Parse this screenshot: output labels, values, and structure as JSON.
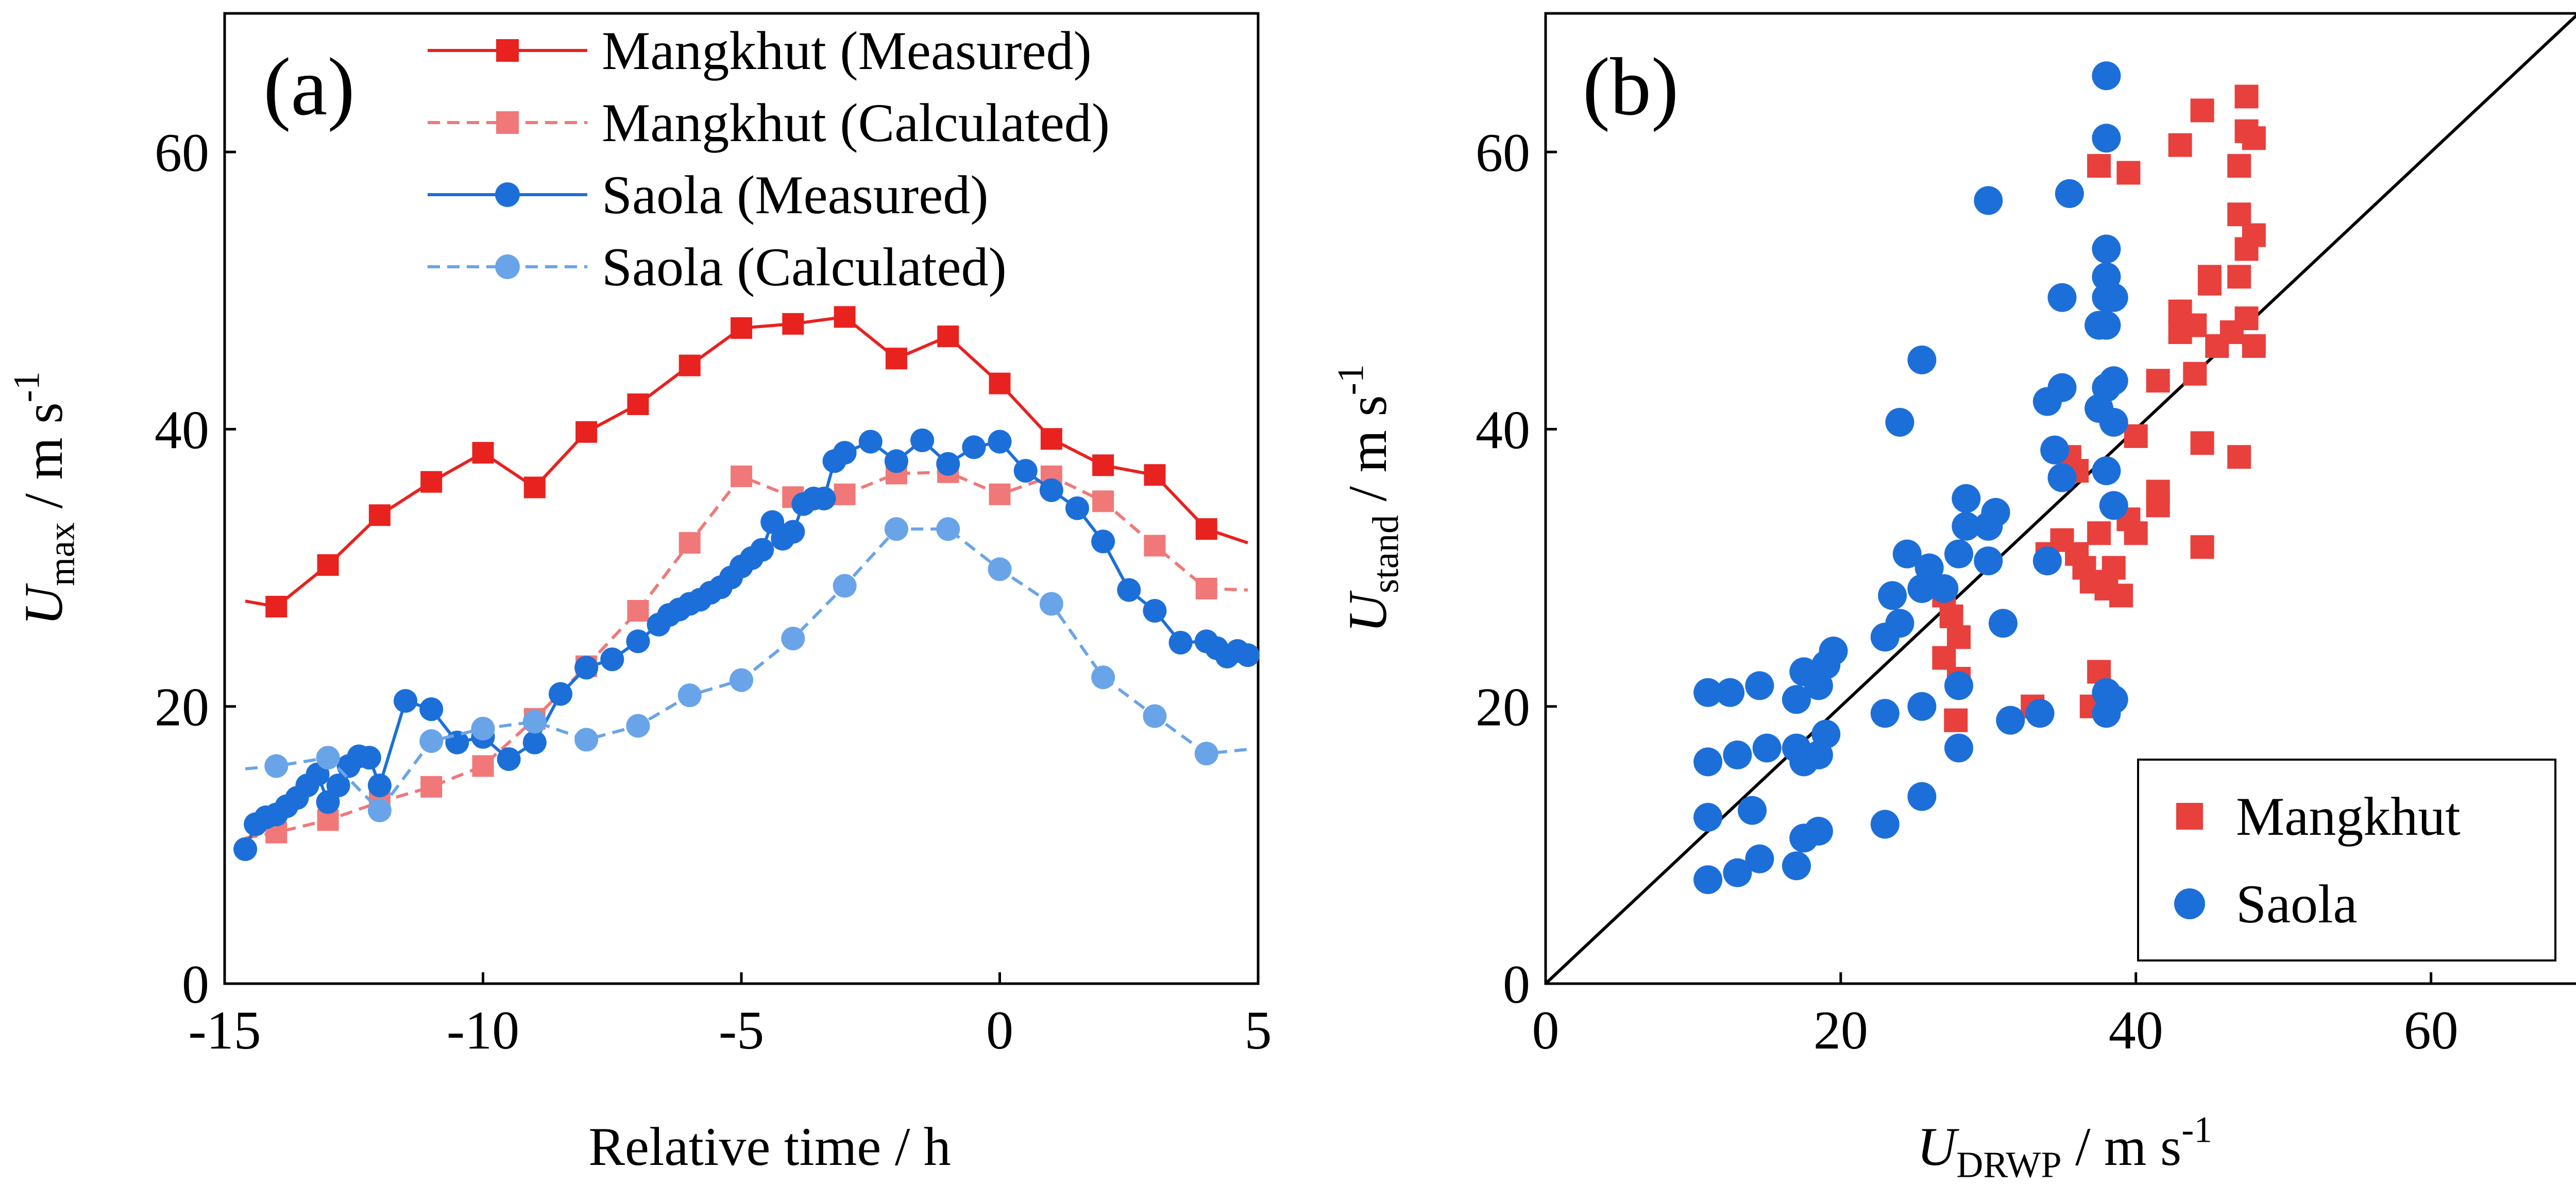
{
  "chart_data": [
    {
      "panel": "(a)",
      "type": "line",
      "xlabel": "Relative time / h",
      "ylabel_main": "U",
      "ylabel_sub": "max",
      "ylabel_units": " / m s",
      "ylabel_sup": "-1",
      "xlim": [
        -15,
        5
      ],
      "ylim": [
        0,
        70
      ],
      "xticks": [
        -15,
        -10,
        -5,
        0,
        5
      ],
      "xtick_labels": [
        "-15",
        "-10",
        "-5",
        "0",
        "5"
      ],
      "yticks": [
        0,
        20,
        40,
        60
      ],
      "ytick_labels": [
        "0",
        "20",
        "40",
        "60"
      ],
      "legend_position": "top-left",
      "series": [
        {
          "name": "Mangkhut (Measured)",
          "color": "#e8221f",
          "marker": "square",
          "style": "solid",
          "marker_x": [
            -14,
            -13,
            -12,
            -11,
            -10,
            -9,
            -8,
            -7,
            -6,
            -5,
            -4,
            -3,
            -2,
            -1,
            0,
            1,
            2,
            3,
            4
          ],
          "marker_y": [
            27.2,
            30.2,
            33.8,
            36.2,
            38.3,
            35.8,
            39.8,
            41.8,
            44.6,
            47.3,
            47.6,
            48.1,
            45.1,
            46.7,
            43.3,
            39.3,
            37.4,
            36.7,
            32.8
          ],
          "line_x": [
            -14.6,
            -14,
            -13,
            -12,
            -11,
            -10,
            -9,
            -8,
            -7,
            -6,
            -5,
            -4,
            -3,
            -2,
            -1,
            0,
            1,
            2,
            3,
            4,
            4.8
          ],
          "line_y": [
            27.6,
            27.2,
            30.2,
            33.8,
            36.2,
            38.3,
            35.8,
            39.8,
            41.8,
            44.6,
            47.3,
            47.6,
            48.1,
            45.1,
            46.7,
            43.3,
            39.3,
            37.4,
            36.7,
            32.8,
            31.8
          ]
        },
        {
          "name": "Mangkhut (Calculated)",
          "color": "#f07878",
          "marker": "square",
          "style": "dashed",
          "marker_x": [
            -14,
            -13,
            -12,
            -11,
            -10,
            -9,
            -8,
            -7,
            -6,
            -5,
            -4,
            -3,
            -2,
            -1,
            0,
            1,
            2,
            3,
            4
          ],
          "marker_y": [
            10.9,
            11.8,
            13.1,
            14.2,
            15.7,
            19.1,
            22.9,
            26.9,
            31.8,
            36.6,
            35.1,
            35.3,
            36.8,
            36.9,
            35.3,
            36.6,
            34.8,
            31.6,
            28.5
          ],
          "line_x": [
            -14.6,
            -14,
            -13,
            -12,
            -11,
            -10,
            -9,
            -8,
            -7,
            -6,
            -5,
            -4,
            -3,
            -2,
            -1,
            0,
            1,
            2,
            3,
            4,
            4.8
          ],
          "line_y": [
            10.5,
            10.9,
            11.8,
            13.1,
            14.2,
            15.7,
            19.1,
            22.9,
            26.9,
            31.8,
            36.6,
            35.1,
            35.3,
            36.8,
            36.9,
            35.3,
            36.6,
            34.8,
            31.6,
            28.5,
            28.4
          ]
        },
        {
          "name": "Saola (Measured)",
          "color": "#1c6fd8",
          "marker": "circle",
          "style": "solid",
          "x": [
            -14.6,
            -14.4,
            -14.2,
            -14.0,
            -13.8,
            -13.6,
            -13.4,
            -13.2,
            -13.0,
            -12.8,
            -12.6,
            -12.4,
            -12.2,
            -12.0,
            -11.5,
            -11.0,
            -10.5,
            -10.0,
            -9.5,
            -9.0,
            -8.5,
            -8.0,
            -7.5,
            -7.0,
            -6.6,
            -6.4,
            -6.2,
            -6.0,
            -5.8,
            -5.6,
            -5.4,
            -5.2,
            -5.0,
            -4.8,
            -4.6,
            -4.4,
            -4.2,
            -4.0,
            -3.8,
            -3.6,
            -3.4,
            -3.2,
            -3.0,
            -2.5,
            -2.0,
            -1.5,
            -1.0,
            -0.5,
            0.0,
            0.5,
            1.0,
            1.5,
            2.0,
            2.5,
            3.0,
            3.5,
            4.0,
            4.2,
            4.4,
            4.6,
            4.8
          ],
          "y": [
            9.7,
            11.5,
            12.0,
            12.2,
            12.8,
            13.4,
            14.3,
            15.1,
            13.1,
            14.3,
            15.7,
            16.4,
            16.3,
            14.3,
            20.4,
            19.8,
            17.4,
            17.8,
            16.2,
            17.4,
            20.9,
            22.8,
            23.4,
            24.7,
            25.9,
            26.6,
            27.0,
            27.4,
            27.7,
            28.2,
            28.6,
            29.3,
            30.1,
            30.7,
            31.3,
            33.3,
            32.1,
            32.6,
            34.6,
            35.0,
            35.0,
            37.7,
            38.3,
            39.1,
            37.7,
            39.2,
            37.5,
            38.7,
            39.1,
            37.0,
            35.6,
            34.3,
            31.9,
            28.4,
            26.9,
            24.6,
            24.7,
            24.2,
            23.6,
            24.0,
            23.7
          ]
        },
        {
          "name": "Saola (Calculated)",
          "color": "#6aa4e8",
          "marker": "circle",
          "style": "dashed",
          "marker_x": [
            -14,
            -13,
            -12,
            -11,
            -10,
            -9,
            -8,
            -7,
            -6,
            -5,
            -4,
            -3,
            -2,
            -1,
            0,
            1,
            2,
            3,
            4
          ],
          "marker_y": [
            15.7,
            16.3,
            12.5,
            17.5,
            18.4,
            18.9,
            17.6,
            18.6,
            20.8,
            21.9,
            24.9,
            28.7,
            32.8,
            32.8,
            29.9,
            27.4,
            22.1,
            19.3,
            16.6
          ],
          "line_x": [
            -14.6,
            -14,
            -13,
            -12,
            -11,
            -10,
            -9,
            -8,
            -7,
            -6,
            -5,
            -4,
            -3,
            -2,
            -1,
            0,
            1,
            2,
            3,
            4,
            4.8
          ],
          "line_y": [
            15.5,
            15.7,
            16.3,
            12.5,
            17.5,
            18.4,
            18.9,
            17.6,
            18.6,
            20.8,
            21.9,
            24.9,
            28.7,
            32.8,
            32.8,
            29.9,
            27.4,
            22.1,
            19.3,
            16.6,
            16.9
          ]
        }
      ]
    },
    {
      "panel": "(b)",
      "type": "scatter",
      "xlabel_main": "U",
      "xlabel_sub": "DRWP",
      "xlabel_units": " / m s",
      "xlabel_sup": "-1",
      "ylabel_main": "U",
      "ylabel_sub": "stand",
      "ylabel_units": " / m s",
      "ylabel_sup": "-1",
      "xlim": [
        0,
        70
      ],
      "ylim": [
        0,
        70
      ],
      "xticks": [
        0,
        20,
        40,
        60
      ],
      "xtick_labels": [
        "0",
        "20",
        "40",
        "60"
      ],
      "yticks": [
        0,
        20,
        40,
        60
      ],
      "ytick_labels": [
        "0",
        "20",
        "40",
        "60"
      ],
      "reference_line": [
        [
          0,
          0
        ],
        [
          70,
          70
        ]
      ],
      "legend_position": "bottom-right",
      "series": [
        {
          "name": "Mangkhut",
          "color": "#e8403c",
          "marker": "square",
          "points": [
            [
              27,
              28
            ],
            [
              27.5,
              26.5
            ],
            [
              28,
              25
            ],
            [
              27,
              23.5
            ],
            [
              28,
              22
            ],
            [
              27.8,
              19
            ],
            [
              33,
              20
            ],
            [
              34,
              31
            ],
            [
              35,
              32
            ],
            [
              36,
              31
            ],
            [
              35.5,
              38
            ],
            [
              36,
              37
            ],
            [
              36.5,
              30
            ],
            [
              37,
              29
            ],
            [
              37.5,
              32.5
            ],
            [
              37.5,
              22.5
            ],
            [
              37,
              20
            ],
            [
              38,
              28.5
            ],
            [
              38.5,
              30
            ],
            [
              39,
              28
            ],
            [
              39.5,
              33.5
            ],
            [
              40,
              39.5
            ],
            [
              40,
              32.5
            ],
            [
              41.5,
              43.5
            ],
            [
              41.5,
              35.5
            ],
            [
              41.5,
              34.5
            ],
            [
              43,
              48.5
            ],
            [
              43,
              47
            ],
            [
              44,
              47.5
            ],
            [
              44,
              44
            ],
            [
              44.5,
              31.5
            ],
            [
              44.5,
              39
            ],
            [
              45,
              50.5
            ],
            [
              45,
              51
            ],
            [
              45.5,
              46
            ],
            [
              46.5,
              47
            ],
            [
              47,
              55.5
            ],
            [
              47,
              51
            ],
            [
              47.5,
              48
            ],
            [
              47.5,
              53
            ],
            [
              48,
              54
            ],
            [
              48,
              46
            ],
            [
              43,
              60.5
            ],
            [
              44.5,
              63
            ],
            [
              47,
              59
            ],
            [
              47.5,
              64
            ],
            [
              47.5,
              61.5
            ],
            [
              48,
              61
            ],
            [
              39.5,
              58.5
            ],
            [
              37.5,
              59
            ],
            [
              47,
              38
            ]
          ]
        },
        {
          "name": "Saola",
          "color": "#1c6fd8",
          "marker": "circle",
          "points": [
            [
              11,
              7.5
            ],
            [
              13,
              8
            ],
            [
              14.5,
              9
            ],
            [
              17,
              8.5
            ],
            [
              17.5,
              10.5
            ],
            [
              18.5,
              11
            ],
            [
              11,
              12
            ],
            [
              14,
              12.5
            ],
            [
              13,
              16.5
            ],
            [
              11,
              16
            ],
            [
              12.5,
              21
            ],
            [
              11,
              21
            ],
            [
              14.5,
              21.5
            ],
            [
              15,
              17
            ],
            [
              17,
              17
            ],
            [
              17.5,
              16
            ],
            [
              18.5,
              16.5
            ],
            [
              19,
              18
            ],
            [
              17,
              20.5
            ],
            [
              17.5,
              22.5
            ],
            [
              18.5,
              21.5
            ],
            [
              19,
              23
            ],
            [
              19.5,
              24
            ],
            [
              23,
              11.5
            ],
            [
              25.5,
              13.5
            ],
            [
              28,
              17
            ],
            [
              23,
              19.5
            ],
            [
              25.5,
              20
            ],
            [
              23,
              25
            ],
            [
              24,
              26
            ],
            [
              23.5,
              28
            ],
            [
              24.5,
              31
            ],
            [
              24,
              40.5
            ],
            [
              25.5,
              45
            ],
            [
              25.5,
              28.5
            ],
            [
              26,
              30
            ],
            [
              27,
              28.5
            ],
            [
              28,
              21.5
            ],
            [
              28.5,
              33
            ],
            [
              28.5,
              35
            ],
            [
              28,
              31
            ],
            [
              30,
              30.5
            ],
            [
              30.5,
              34
            ],
            [
              30,
              33
            ],
            [
              31,
              26
            ],
            [
              31.5,
              19
            ],
            [
              33.5,
              19.5
            ],
            [
              34,
              30.5
            ],
            [
              34,
              42
            ],
            [
              34.5,
              38.5
            ],
            [
              35,
              43
            ],
            [
              35,
              49.5
            ],
            [
              35,
              36.5
            ],
            [
              35.5,
              57
            ],
            [
              37.5,
              41.5
            ],
            [
              38,
              37
            ],
            [
              38,
              43
            ],
            [
              38,
              47.5
            ],
            [
              38.5,
              34.5
            ],
            [
              38.5,
              40.5
            ],
            [
              38,
              21
            ],
            [
              38,
              19.5
            ],
            [
              38.5,
              20.5
            ],
            [
              37.5,
              47.5
            ],
            [
              38,
              51
            ],
            [
              38,
              53
            ],
            [
              38,
              49.5
            ],
            [
              38.5,
              49.5
            ],
            [
              30,
              56.5
            ],
            [
              38,
              61
            ],
            [
              38,
              65.5
            ],
            [
              38.5,
              43.5
            ]
          ]
        }
      ]
    }
  ]
}
